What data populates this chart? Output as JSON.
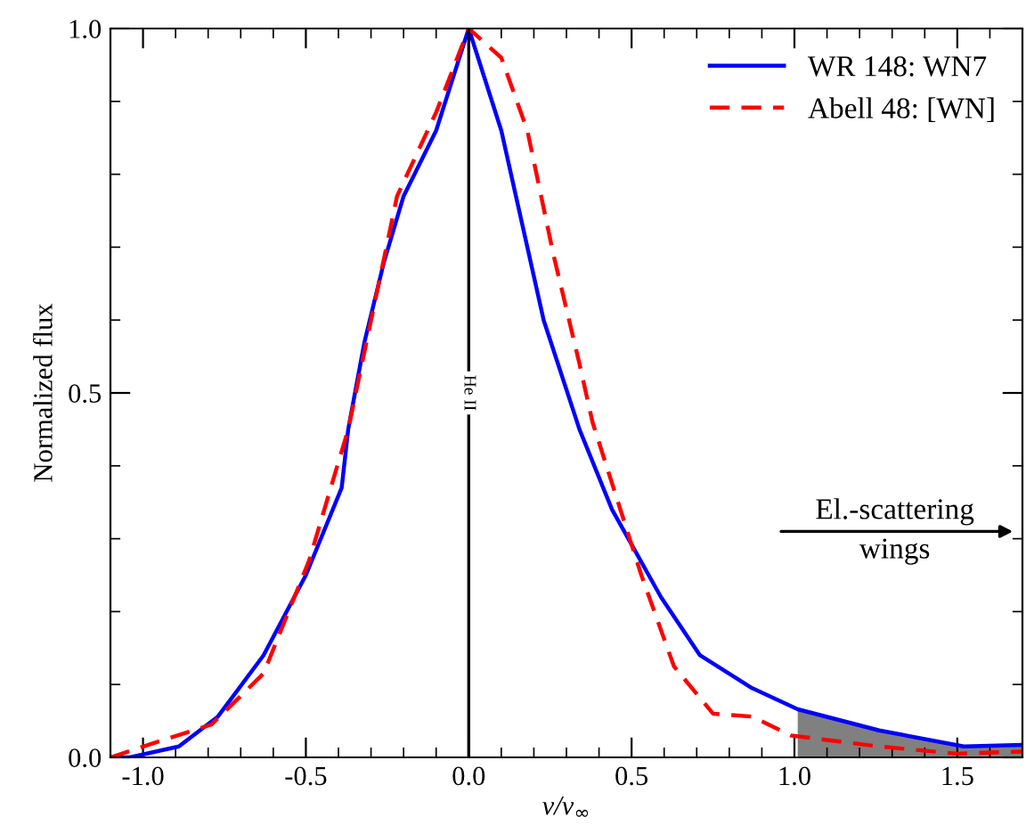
{
  "chart_data": {
    "type": "line",
    "xlabel": "v/v$_{∞}$",
    "ylabel": "Normalized flux",
    "xlim": [
      -1.1,
      1.7
    ],
    "ylim": [
      0,
      1.0
    ],
    "xticks": [
      {
        "value": -1.0,
        "label": "-1.0"
      },
      {
        "value": -0.5,
        "label": "-0.5"
      },
      {
        "value": 0,
        "label": "0.0"
      },
      {
        "value": 0.5,
        "label": "0.5"
      },
      {
        "value": 1.0,
        "label": "1.0"
      },
      {
        "value": 1.5,
        "label": "1.5"
      }
    ],
    "yticks": [
      {
        "value": 0,
        "label": "0.0"
      },
      {
        "value": 0.5,
        "label": "0.5"
      },
      {
        "value": 1.0,
        "label": "1.0"
      }
    ],
    "grid": false,
    "legend": "top right",
    "series": [
      {
        "type": "area",
        "color": "#808080",
        "x": [
          1.01,
          1.26,
          1.52,
          1.7
        ],
        "values": [
          0.066,
          0.037,
          0.015,
          0.017
        ]
      },
      {
        "name": "WR 148: WN7",
        "color": "#0000ff",
        "line_style": "solid",
        "x": [
          -1.1,
          -1.04,
          -0.89,
          -0.77,
          -0.63,
          -0.5,
          -0.39,
          -0.37,
          -0.32,
          -0.26,
          -0.2,
          -0.1,
          0.0,
          0.1,
          0.16,
          0.23,
          0.34,
          0.44,
          0.59,
          0.71,
          0.87,
          1.01,
          1.26,
          1.52,
          1.7
        ],
        "values": [
          0,
          0,
          0.015,
          0.056,
          0.14,
          0.25,
          0.37,
          0.45,
          0.57,
          0.68,
          0.77,
          0.86,
          1.0,
          0.86,
          0.74,
          0.6,
          0.45,
          0.34,
          0.22,
          0.14,
          0.095,
          0.066,
          0.037,
          0.015,
          0.017
        ]
      },
      {
        "name": "Abell 48: [WN]",
        "color": "#ff0000",
        "line_style": "dashed",
        "x": [
          -1.1,
          -0.93,
          -0.79,
          -0.63,
          -0.49,
          -0.37,
          -0.22,
          -0.1,
          0.0,
          0.1,
          0.18,
          0.26,
          0.34,
          0.38,
          0.43,
          0.53,
          0.63,
          0.75,
          0.87,
          0.99,
          1.26,
          1.5,
          1.7
        ],
        "values": [
          0,
          0.025,
          0.045,
          0.115,
          0.27,
          0.45,
          0.77,
          0.885,
          1.0,
          0.96,
          0.86,
          0.69,
          0.54,
          0.46,
          0.39,
          0.25,
          0.125,
          0.06,
          0.056,
          0.03,
          0.015,
          0.005,
          0.008
        ]
      }
    ],
    "ref_lines": [
      {
        "axis": "x",
        "value": 0,
        "label": "He II",
        "color": "#000000"
      }
    ],
    "annotations": [
      "El.-scattering\nwings"
    ]
  }
}
